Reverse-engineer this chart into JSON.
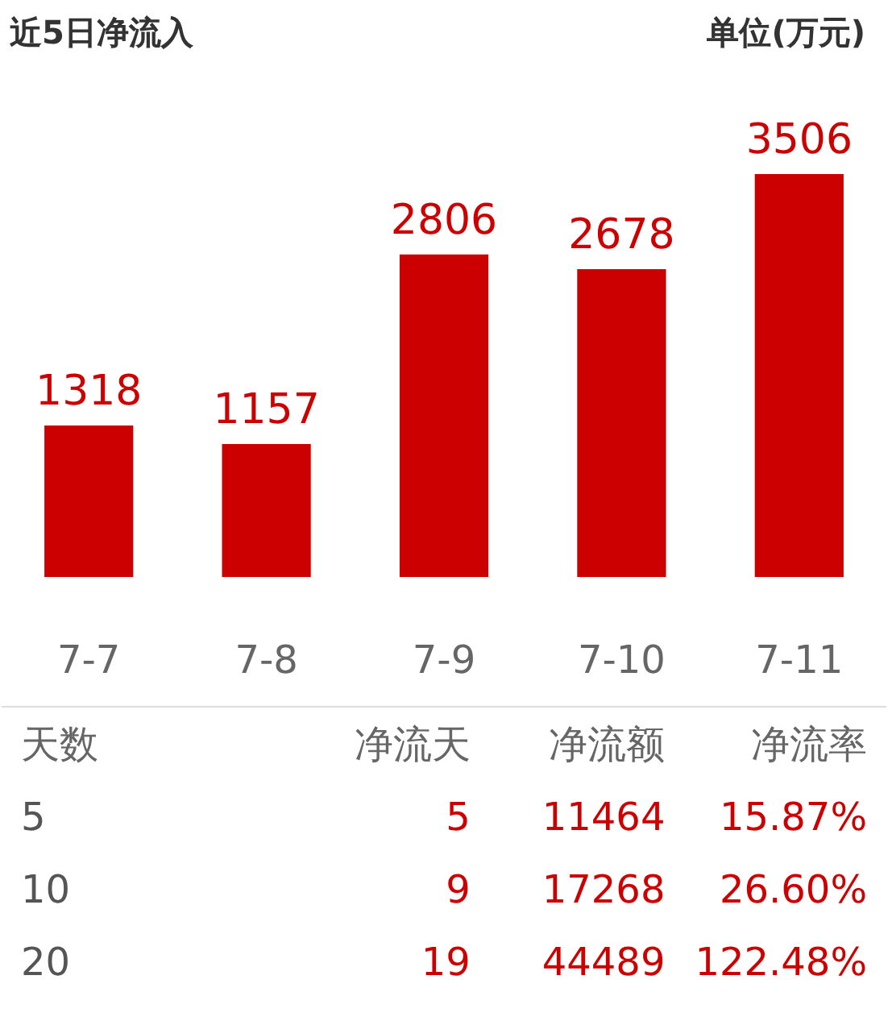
{
  "chart_data": [
    {
      "type": "bar",
      "title": "近5日净流入",
      "subtitle": "单位(万元)",
      "categories": [
        "7-7",
        "7-8",
        "7-9",
        "7-10",
        "7-11"
      ],
      "values": [
        1318,
        1157,
        2806,
        2678,
        3506
      ],
      "color": "#cc0000",
      "data_labels": true
    },
    {
      "type": "other",
      "categories": [
        "天数",
        "净流天",
        "净流额",
        "净流率"
      ],
      "cell_labels": [
        [
          "5",
          "5",
          "11464",
          "15.87%"
        ],
        [
          "10",
          "9",
          "17268",
          "26.60%"
        ],
        [
          "20",
          "19",
          "44489",
          "122.48%"
        ]
      ],
      "colors": [
        "#555555",
        "#cc0000",
        "#cc0000",
        "#cc0000"
      ]
    }
  ]
}
